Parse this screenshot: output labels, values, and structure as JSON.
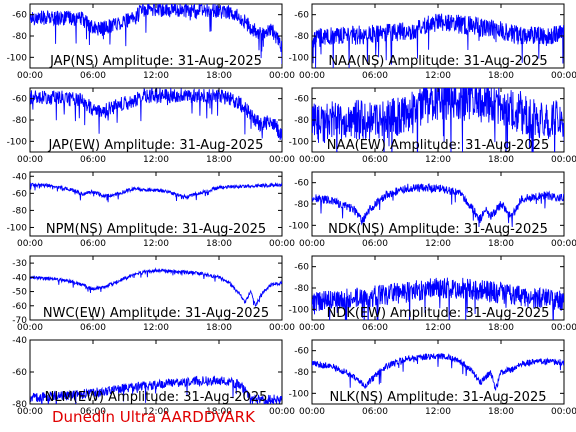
{
  "footer_text": "Dunedin Ultra AARDDVARK",
  "colors": {
    "trace": "#0000ff",
    "axes": "#000000",
    "footer": "#e00000"
  },
  "chart_data": [
    {
      "type": "line",
      "title": "JAP(NS) Amplitude: 31-Aug-2025",
      "xticks": [
        "00:00",
        "06:00",
        "12:00",
        "18:00",
        "00:00"
      ],
      "ylim": [
        -110,
        -50
      ],
      "yticks": [
        -100,
        -80,
        -60
      ],
      "noise": 7,
      "series": [
        {
          "x_hours": [
            0,
            3,
            5,
            6,
            7,
            8,
            9,
            10,
            10.5,
            12,
            15,
            18,
            19,
            20,
            21,
            22,
            23,
            24
          ],
          "values": [
            -63,
            -63,
            -64,
            -73,
            -73,
            -69,
            -66,
            -64,
            -55,
            -55,
            -56,
            -57,
            -58,
            -62,
            -72,
            -79,
            -74,
            -90
          ]
        }
      ]
    },
    {
      "type": "line",
      "title": "NAA(NS) Amplitude: 31-Aug-2025",
      "xticks": [
        "00:00",
        "06:00",
        "12:00",
        "18:00",
        "00:00"
      ],
      "ylim": [
        -110,
        -50
      ],
      "yticks": [
        -100,
        -80,
        -60
      ],
      "noise": 9,
      "series": [
        {
          "x_hours": [
            0,
            3,
            6,
            9,
            11,
            12,
            13,
            15,
            18,
            20,
            22,
            24
          ],
          "values": [
            -82,
            -80,
            -78,
            -76,
            -70,
            -67,
            -68,
            -70,
            -75,
            -80,
            -80,
            -78
          ]
        }
      ]
    },
    {
      "type": "line",
      "title": "JAP(EW) Amplitude: 31-Aug-2025",
      "xticks": [
        "00:00",
        "06:00",
        "12:00",
        "18:00",
        "00:00"
      ],
      "ylim": [
        -110,
        -50
      ],
      "yticks": [
        -100,
        -80,
        -60
      ],
      "noise": 7,
      "series": [
        {
          "x_hours": [
            0,
            3,
            5,
            6,
            7,
            8,
            9,
            10,
            10.5,
            12,
            15,
            18,
            19,
            20,
            21,
            22,
            23,
            24
          ],
          "values": [
            -59,
            -59,
            -62,
            -70,
            -72,
            -68,
            -64,
            -63,
            -58,
            -57,
            -57,
            -58,
            -59,
            -65,
            -75,
            -85,
            -80,
            -95
          ]
        }
      ]
    },
    {
      "type": "line",
      "title": "NAA(EW) Amplitude: 31-Aug-2025",
      "xticks": [
        "00:00",
        "06:00",
        "12:00",
        "18:00",
        "00:00"
      ],
      "ylim": [
        -110,
        -50
      ],
      "yticks": [
        -100,
        -80,
        -60
      ],
      "noise": 20,
      "series": [
        {
          "x_hours": [
            0,
            6,
            9,
            11,
            12,
            14,
            18,
            21,
            24
          ],
          "values": [
            -82,
            -80,
            -78,
            -60,
            -60,
            -61,
            -64,
            -78,
            -82
          ]
        }
      ]
    },
    {
      "type": "line",
      "title": "NPM(NS) Amplitude: 31-Aug-2025",
      "xticks": [
        "00:00",
        "06:00",
        "12:00",
        "18:00",
        "00:00"
      ],
      "ylim": [
        -110,
        -35
      ],
      "yticks": [
        -100,
        -80,
        -60,
        -40
      ],
      "noise": 2,
      "series": [
        {
          "x_hours": [
            0,
            2,
            4,
            5,
            6,
            7,
            8,
            9,
            10,
            11,
            12,
            13,
            14,
            15,
            16,
            17,
            18,
            20,
            22,
            24
          ],
          "values": [
            -50,
            -51,
            -56,
            -61,
            -58,
            -63,
            -62,
            -58,
            -54,
            -56,
            -56,
            -58,
            -62,
            -64,
            -60,
            -57,
            -53,
            -52,
            -51,
            -50
          ]
        }
      ]
    },
    {
      "type": "line",
      "title": "NDK(NS) Amplitude: 31-Aug-2025",
      "xticks": [
        "00:00",
        "06:00",
        "12:00",
        "18:00",
        "00:00"
      ],
      "ylim": [
        -110,
        -50
      ],
      "yticks": [
        -100,
        -80,
        -60
      ],
      "noise": 4,
      "series": [
        {
          "x_hours": [
            0,
            2,
            4,
            4.8,
            5.5,
            7,
            9,
            12,
            14,
            15,
            16,
            16.5,
            17,
            18,
            19,
            20,
            22,
            24
          ],
          "values": [
            -74,
            -77,
            -85,
            -96,
            -85,
            -72,
            -65,
            -65,
            -70,
            -80,
            -95,
            -85,
            -92,
            -80,
            -92,
            -75,
            -72,
            -74
          ]
        }
      ]
    },
    {
      "type": "line",
      "title": "NWC(EW) Amplitude: 31-Aug-2025",
      "xticks": [
        "00:00",
        "06:00",
        "12:00",
        "18:00",
        "00:00"
      ],
      "ylim": [
        -70,
        -25
      ],
      "yticks": [
        -70,
        -60,
        -50,
        -40,
        -30
      ],
      "noise": 1.2,
      "series": [
        {
          "x_hours": [
            0,
            2,
            4,
            6,
            7,
            8,
            9,
            10,
            11,
            12,
            14,
            16,
            18,
            19,
            20,
            20.5,
            21,
            21.5,
            22,
            23,
            24
          ],
          "values": [
            -40,
            -41,
            -43,
            -48,
            -47,
            -44,
            -41,
            -38,
            -36,
            -35,
            -36,
            -37,
            -40,
            -44,
            -52,
            -58,
            -50,
            -60,
            -52,
            -45,
            -44
          ]
        }
      ]
    },
    {
      "type": "line",
      "title": "NDK(EW) Amplitude: 31-Aug-2025",
      "xticks": [
        "00:00",
        "06:00",
        "12:00",
        "18:00",
        "00:00"
      ],
      "ylim": [
        -110,
        -50
      ],
      "yticks": [
        -100,
        -80,
        -60
      ],
      "noise": 10,
      "series": [
        {
          "x_hours": [
            0,
            4,
            8,
            12,
            14,
            16,
            20,
            24
          ],
          "values": [
            -93,
            -90,
            -85,
            -80,
            -80,
            -82,
            -88,
            -92
          ]
        }
      ]
    },
    {
      "type": "line",
      "title": "NLM(EW) Amplitude: 31-Aug-2025",
      "xticks": [
        "00:00",
        "06:00",
        "12:00",
        "18:00",
        "00:00"
      ],
      "ylim": [
        -80,
        -40
      ],
      "yticks": [
        -80,
        -60,
        -40
      ],
      "noise": 3,
      "series": [
        {
          "x_hours": [
            0,
            3,
            6,
            9,
            12,
            15,
            18,
            20,
            21,
            24
          ],
          "values": [
            -76,
            -75,
            -73,
            -70,
            -68,
            -66,
            -65,
            -68,
            -77,
            -77
          ]
        }
      ]
    },
    {
      "type": "line",
      "title": "NLK(NS) Amplitude: 31-Aug-2025",
      "xticks": [
        "00:00",
        "06:00",
        "12:00",
        "18:00",
        "00:00"
      ],
      "ylim": [
        -110,
        -50
      ],
      "yticks": [
        -100,
        -80,
        -60
      ],
      "noise": 3,
      "series": [
        {
          "x_hours": [
            0,
            2,
            4,
            5,
            6,
            7,
            9,
            12,
            13,
            14,
            15,
            16,
            17,
            17.5,
            18,
            19,
            20,
            21,
            22,
            24
          ],
          "values": [
            -72,
            -75,
            -84,
            -93,
            -84,
            -75,
            -67,
            -65,
            -66,
            -70,
            -76,
            -90,
            -80,
            -96,
            -80,
            -78,
            -72,
            -71,
            -70,
            -71
          ]
        }
      ]
    }
  ]
}
